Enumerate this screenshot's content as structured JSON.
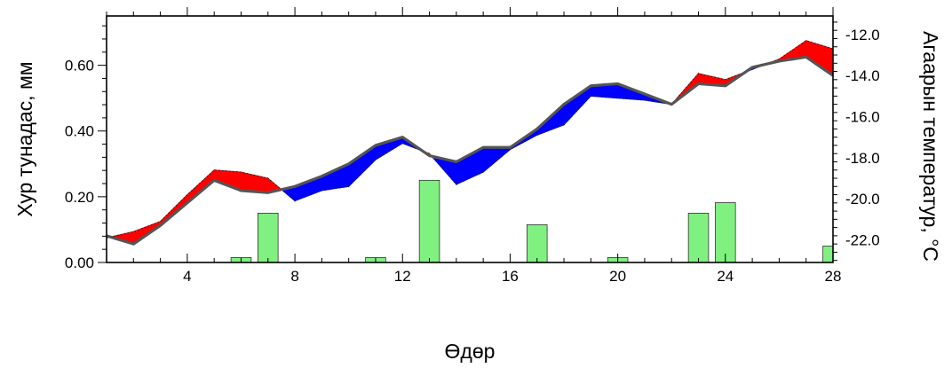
{
  "chart_data": {
    "type": "line",
    "xlabel": "Өдөр",
    "ylabel_left": "Хур тунадас, мм",
    "ylabel_right": "Агаарын температур, °С",
    "xlim": [
      1,
      28
    ],
    "ylim_left": [
      0,
      0.75
    ],
    "ylim_right": [
      -23.1,
      -11.1
    ],
    "x_ticks": [
      4,
      8,
      12,
      16,
      20,
      24,
      28
    ],
    "x_tick_labels": [
      "4",
      "8",
      "12",
      "16",
      "20",
      "24",
      "28"
    ],
    "y_left_ticks": [
      0,
      0.2,
      0.4,
      0.6
    ],
    "y_left_tick_labels": [
      "0.00",
      "0.20",
      "0.40",
      "0.60"
    ],
    "y_right_ticks": [
      -22,
      -20,
      -18,
      -16,
      -14,
      -12
    ],
    "y_right_tick_labels": [
      "-22.0",
      "-20.0",
      "-18.0",
      "-16.0",
      "-14.0",
      "-12.0"
    ],
    "x": [
      1,
      2,
      3,
      4,
      5,
      6,
      7,
      8,
      9,
      10,
      11,
      12,
      13,
      14,
      15,
      16,
      17,
      18,
      19,
      20,
      21,
      22,
      23,
      24,
      25,
      26,
      27,
      28
    ],
    "series": [
      {
        "values": [
          -21.8,
          -22.2,
          -21.3,
          -20.2,
          -19.1,
          -19.6,
          -19.7,
          -19.4,
          -18.9,
          -18.3,
          -17.4,
          -17.0,
          -17.9,
          -18.2,
          -17.5,
          -17.5,
          -16.6,
          -15.4,
          -14.5,
          -14.4,
          -14.9,
          -15.4,
          -14.4,
          -14.5,
          -13.6,
          -13.3,
          -13.1,
          -14.0
        ]
      },
      {
        "values": [
          -21.9,
          -21.6,
          -21.1,
          -19.8,
          -18.6,
          -18.7,
          -19.0,
          -20.1,
          -19.6,
          -19.4,
          -18.1,
          -17.3,
          -17.8,
          -19.3,
          -18.7,
          -17.6,
          -16.9,
          -16.4,
          -15.0,
          -15.1,
          -15.2,
          -15.4,
          -13.9,
          -14.2,
          -13.7,
          -13.2,
          -12.3,
          -12.7
        ]
      }
    ],
    "fill_colors": {
      "above": "#ff0000",
      "below": "#0000ff"
    },
    "bars": {
      "x": [
        6,
        7,
        11,
        13,
        17,
        20,
        23,
        24,
        28
      ],
      "values": [
        0.015,
        0.15,
        0.015,
        0.25,
        0.115,
        0.015,
        0.15,
        0.182,
        0.05
      ],
      "color": "#80f080"
    },
    "line_color": "#555555",
    "grid": false
  }
}
